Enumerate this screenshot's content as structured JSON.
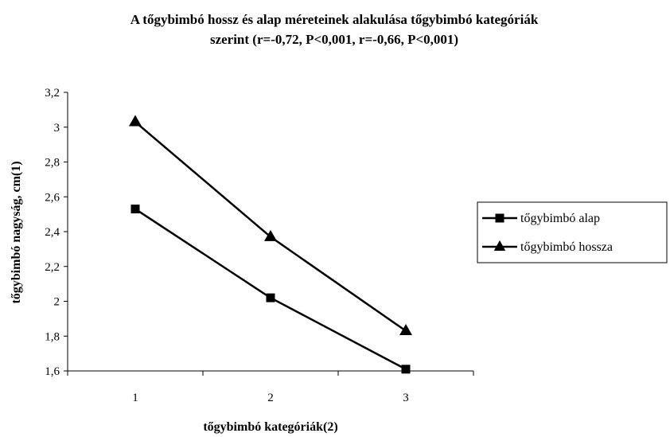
{
  "chart_data": {
    "type": "line",
    "title_line1": "A tőgybimbó hossz és alap méreteinek alakulása tőgybimbó kategóriák",
    "title_line2": "szerint (r=-0,72, P<0,001, r=-0,66, P<0,001)",
    "xlabel": "tőgybimbó kategóriák(2)",
    "ylabel": "tőgybimbó nagyság, cm(1)",
    "categories": [
      "1",
      "2",
      "3"
    ],
    "ylim": [
      1.6,
      3.2
    ],
    "yticks": [
      "1,6",
      "1,8",
      "2",
      "2,2",
      "2,4",
      "2,6",
      "2,8",
      "3",
      "3,2"
    ],
    "ytick_values": [
      1.6,
      1.8,
      2.0,
      2.2,
      2.4,
      2.6,
      2.8,
      3.0,
      3.2
    ],
    "grid": false,
    "legend_position": "right",
    "series": [
      {
        "name": "tőgybimbó alap",
        "marker": "square",
        "values": [
          2.53,
          2.02,
          1.61
        ]
      },
      {
        "name": "tőgybimbó hossza",
        "marker": "triangle",
        "values": [
          3.03,
          2.37,
          1.83
        ]
      }
    ]
  }
}
